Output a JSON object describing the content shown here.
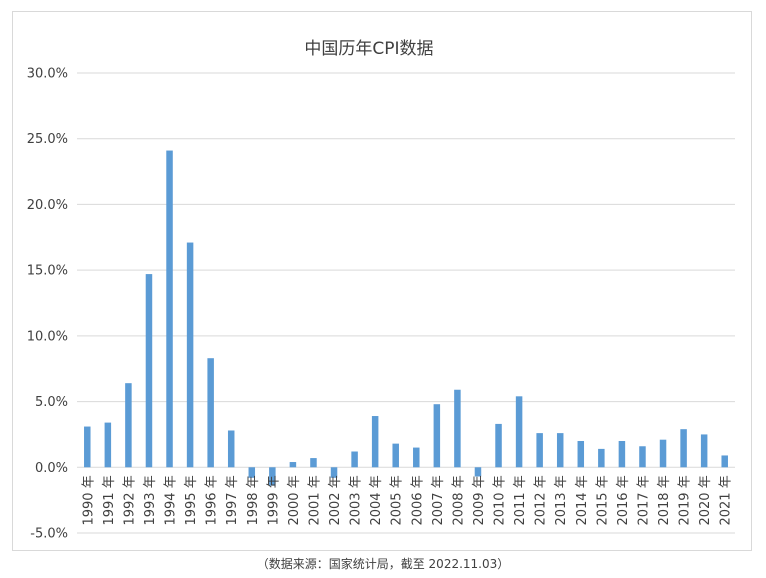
{
  "chart_data": {
    "type": "bar",
    "title": "中国历年CPI数据",
    "xlabel": "",
    "ylabel": "",
    "categories": [
      "1990 年",
      "1991 年",
      "1992 年",
      "1993 年",
      "1994 年",
      "1995 年",
      "1996 年",
      "1997 年",
      "1998 年",
      "1999 年",
      "2000 年",
      "2001 年",
      "2002 年",
      "2003 年",
      "2004 年",
      "2005 年",
      "2006 年",
      "2007 年",
      "2008 年",
      "2009 年",
      "2010 年",
      "2011 年",
      "2012 年",
      "2013 年",
      "2014 年",
      "2015 年",
      "2016 年",
      "2017 年",
      "2018 年",
      "2019 年",
      "2020 年",
      "2021 年"
    ],
    "values": [
      3.1,
      3.4,
      6.4,
      14.7,
      24.1,
      17.1,
      8.3,
      2.8,
      -0.8,
      -1.4,
      0.4,
      0.7,
      -0.8,
      1.2,
      3.9,
      1.8,
      1.5,
      4.8,
      5.9,
      -0.7,
      3.3,
      5.4,
      2.6,
      2.6,
      2.0,
      1.4,
      2.0,
      1.6,
      2.1,
      2.9,
      2.5,
      0.9
    ],
    "ylim": [
      -5,
      30
    ],
    "yticks": [
      30,
      25,
      20,
      15,
      10,
      5,
      0,
      -5
    ],
    "ytick_labels": [
      "30.0%",
      "25.0%",
      "20.0%",
      "15.0%",
      "10.0%",
      "5.0%",
      "0.0%",
      "-5.0%"
    ],
    "grid": true,
    "legend": "none",
    "bar_color": "#5b9bd5",
    "grid_color": "#d9d9d9",
    "text_color": "#404040"
  },
  "footer": {
    "source": "（数据来源：国家统计局，截至 2022.11.03）"
  }
}
